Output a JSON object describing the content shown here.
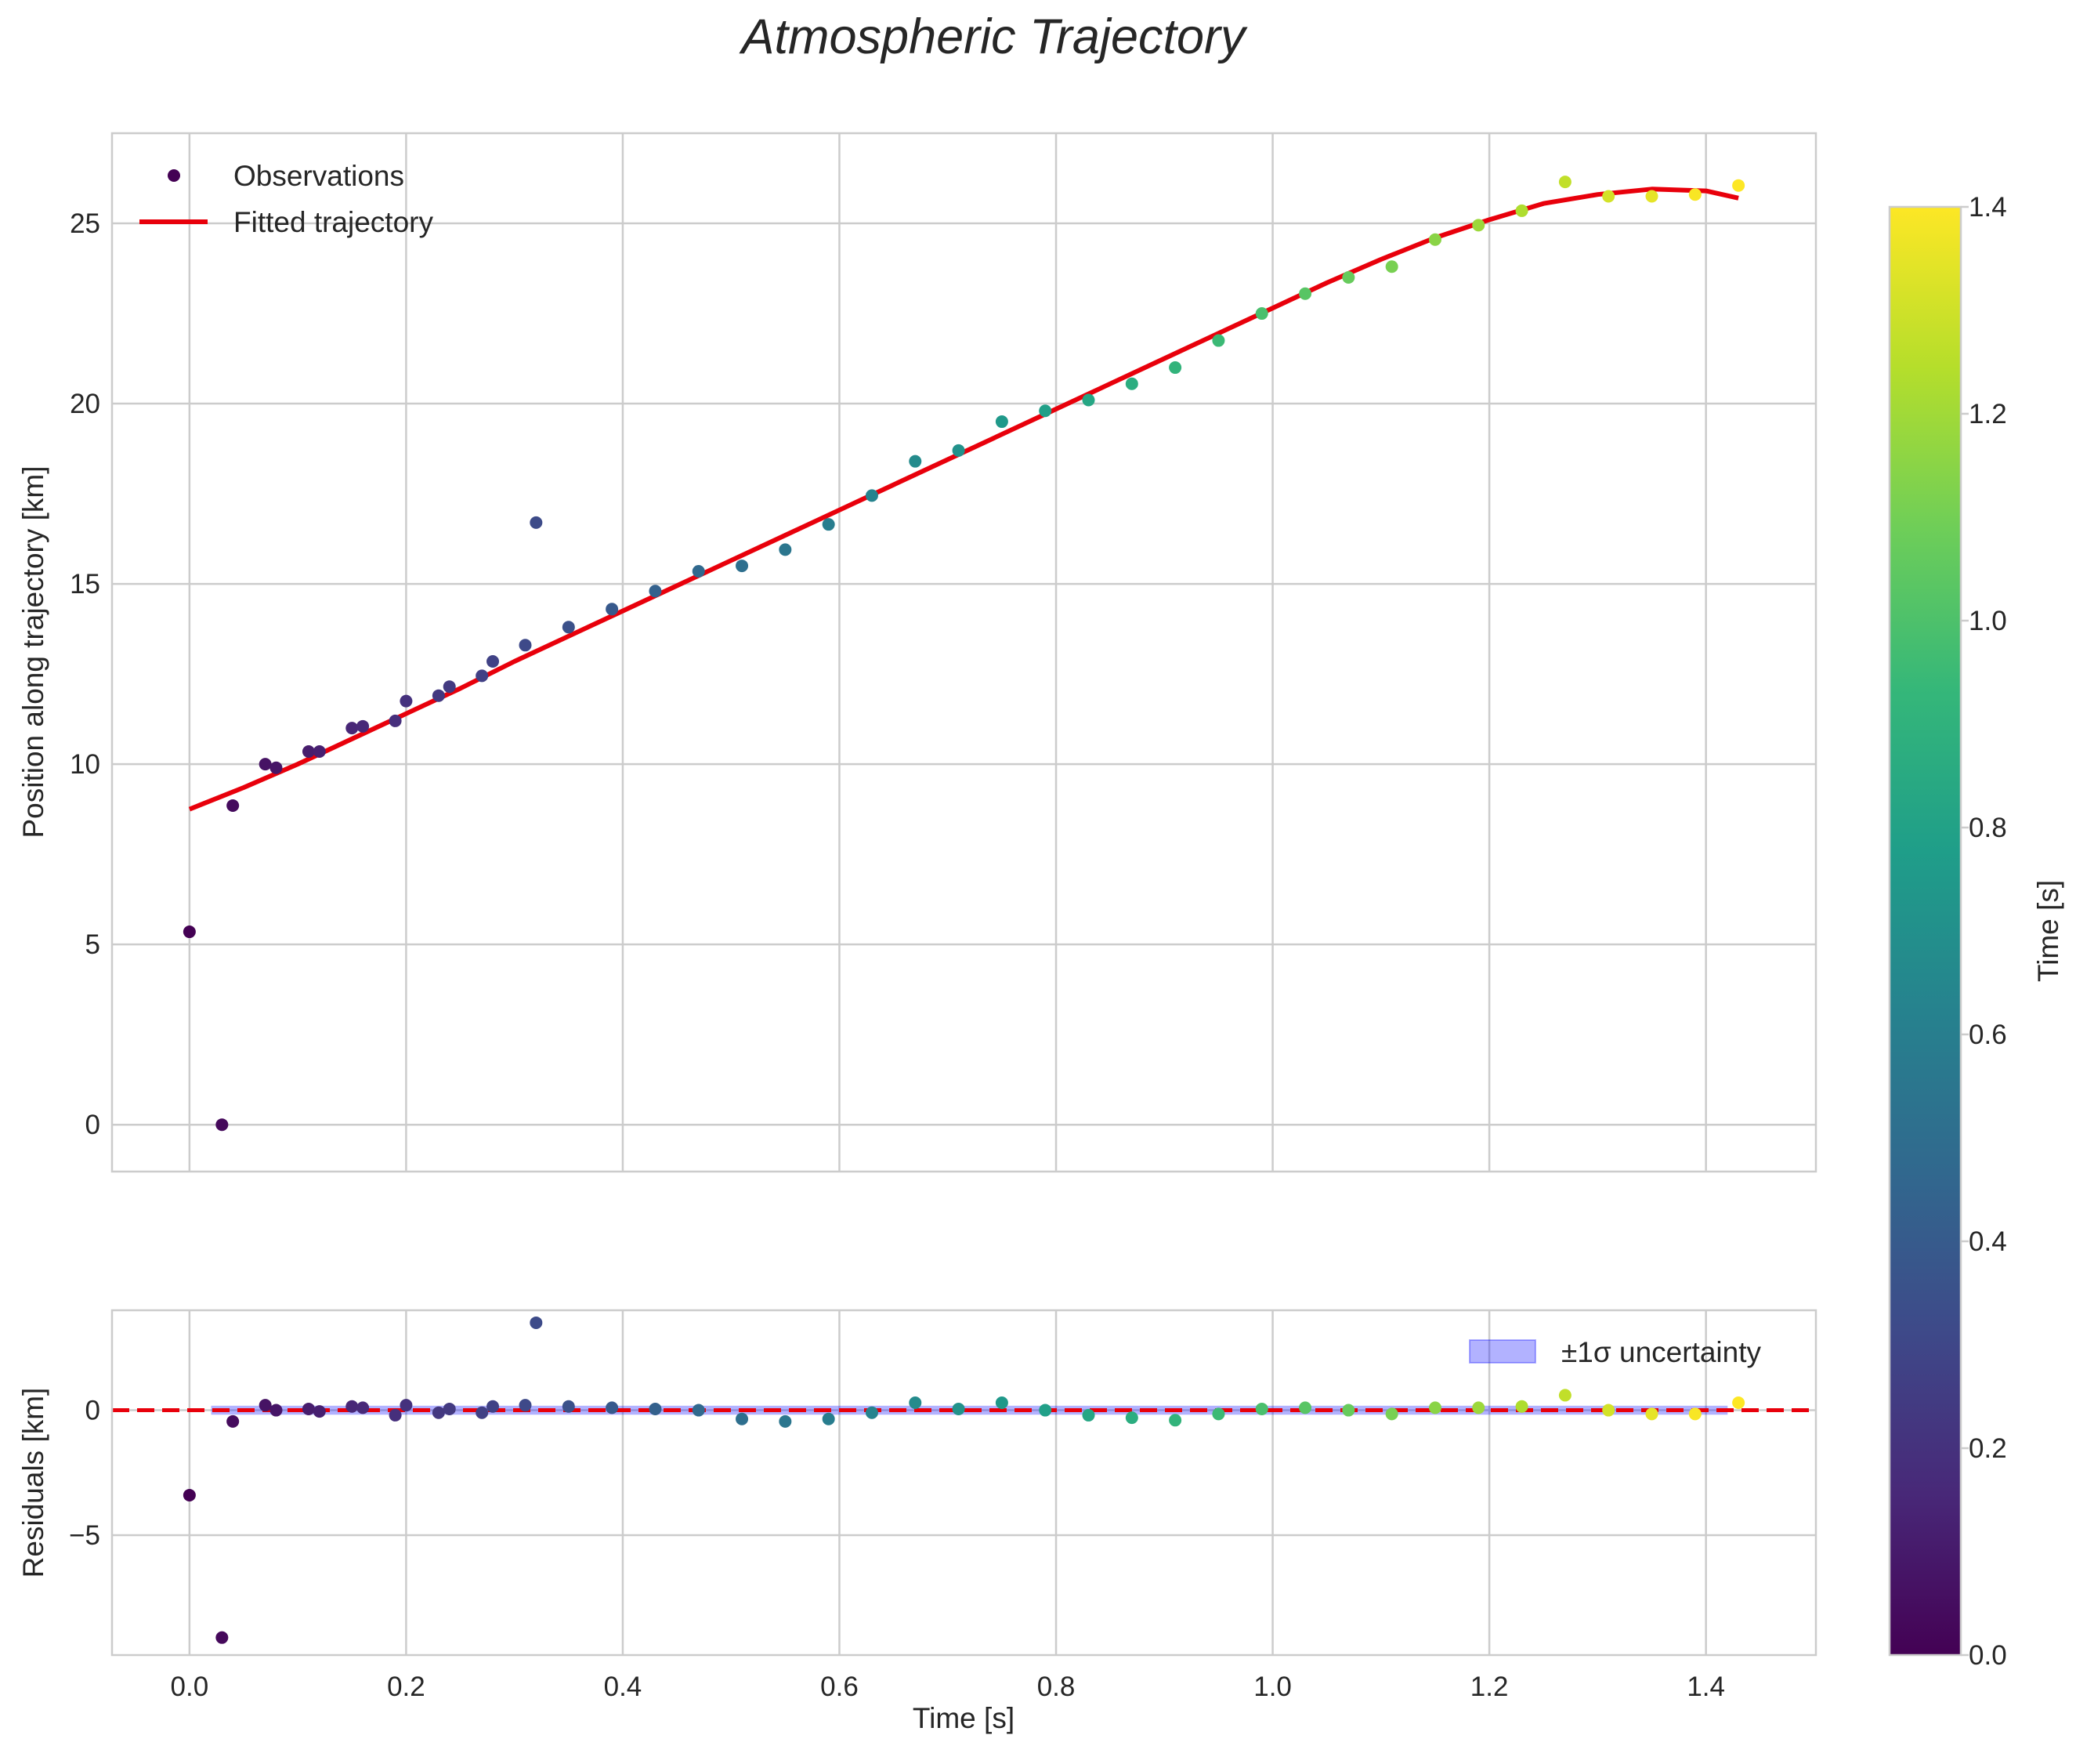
{
  "chart_data": [
    {
      "type": "scatter",
      "title": "Atmospheric Trajectory",
      "xlabel": "",
      "ylabel": "Position along trajectory [km]",
      "xlim": [
        -0.0715,
        1.5015
      ],
      "ylim": [
        -1.3,
        27.5
      ],
      "xticks": [
        0.0,
        0.2,
        0.4,
        0.6,
        0.8,
        1.0,
        1.2,
        1.4
      ],
      "xtick_labels": [],
      "yticks": [
        0,
        5,
        10,
        15,
        20,
        25
      ],
      "ytick_labels": [
        "0",
        "5",
        "10",
        "15",
        "20",
        "25"
      ],
      "grid": true,
      "legend": {
        "placement": "top-left",
        "entries": [
          "Observations",
          "Fitted trajectory"
        ]
      },
      "series": [
        {
          "name": "Observations",
          "kind": "scatter",
          "color_by": "time",
          "x": [
            0.0,
            0.03,
            0.04,
            0.07,
            0.08,
            0.11,
            0.12,
            0.15,
            0.16,
            0.19,
            0.2,
            0.23,
            0.24,
            0.27,
            0.28,
            0.31,
            0.32,
            0.35,
            0.39,
            0.43,
            0.47,
            0.51,
            0.55,
            0.59,
            0.63,
            0.67,
            0.71,
            0.75,
            0.79,
            0.83,
            0.87,
            0.91,
            0.95,
            0.99,
            1.03,
            1.07,
            1.11,
            1.15,
            1.19,
            1.23,
            1.27,
            1.31,
            1.35,
            1.39,
            1.43
          ],
          "y": [
            5.35,
            0.0,
            8.85,
            10.0,
            9.9,
            10.35,
            10.35,
            11.0,
            11.05,
            11.2,
            11.75,
            11.9,
            12.15,
            12.45,
            12.85,
            13.3,
            16.7,
            13.8,
            14.3,
            14.8,
            15.35,
            15.5,
            15.95,
            16.65,
            17.45,
            18.4,
            18.7,
            19.5,
            19.8,
            20.1,
            20.55,
            21.0,
            21.75,
            22.5,
            23.05,
            23.5,
            23.8,
            24.55,
            24.95,
            25.35,
            26.15,
            25.75,
            25.75,
            25.8,
            26.05
          ]
        },
        {
          "name": "Fitted trajectory",
          "kind": "line",
          "color": "#e8000b",
          "x": [
            0.0,
            0.05,
            0.1,
            0.15,
            0.2,
            0.25,
            0.3,
            0.35,
            0.4,
            0.45,
            0.5,
            0.55,
            0.6,
            0.65,
            0.7,
            0.75,
            0.8,
            0.85,
            0.9,
            0.95,
            1.0,
            1.05,
            1.1,
            1.15,
            1.2,
            1.25,
            1.3,
            1.35,
            1.4,
            1.43
          ],
          "y": [
            8.75,
            9.35,
            10.0,
            10.7,
            11.4,
            12.1,
            12.85,
            13.55,
            14.25,
            14.95,
            15.65,
            16.35,
            17.05,
            17.75,
            18.45,
            19.15,
            19.85,
            20.55,
            21.25,
            21.95,
            22.65,
            23.35,
            24.0,
            24.6,
            25.1,
            25.55,
            25.8,
            25.95,
            25.9,
            25.7
          ]
        }
      ]
    },
    {
      "type": "scatter",
      "title": "",
      "xlabel": "Time [s]",
      "ylabel": "Residuals [km]",
      "xlim": [
        -0.0715,
        1.5015
      ],
      "ylim": [
        -9.8,
        4.0
      ],
      "xticks": [
        0.0,
        0.2,
        0.4,
        0.6,
        0.8,
        1.0,
        1.2,
        1.4
      ],
      "xtick_labels": [
        "0.0",
        "0.2",
        "0.4",
        "0.6",
        "0.8",
        "1.0",
        "1.2",
        "1.4"
      ],
      "yticks": [
        -5,
        0
      ],
      "ytick_labels": [
        "−5",
        "0"
      ],
      "grid": true,
      "legend": {
        "placement": "top-right",
        "entries": [
          "±1σ uncertainty"
        ]
      },
      "zero_line": {
        "y": 0,
        "style": "dashed",
        "color": "#e8000b"
      },
      "uncertainty_band": {
        "name": "±1σ uncertainty",
        "lower": -0.18,
        "upper": 0.18,
        "x": [
          0.02,
          1.42
        ],
        "color": "#0000ff"
      },
      "series": [
        {
          "name": "Residuals",
          "kind": "scatter",
          "color_by": "time",
          "x": [
            0.0,
            0.03,
            0.04,
            0.07,
            0.08,
            0.11,
            0.12,
            0.15,
            0.16,
            0.19,
            0.2,
            0.23,
            0.24,
            0.27,
            0.28,
            0.31,
            0.32,
            0.35,
            0.39,
            0.43,
            0.47,
            0.51,
            0.55,
            0.59,
            0.63,
            0.67,
            0.71,
            0.75,
            0.79,
            0.83,
            0.87,
            0.91,
            0.95,
            0.99,
            1.03,
            1.07,
            1.11,
            1.15,
            1.19,
            1.23,
            1.27,
            1.31,
            1.35,
            1.39,
            1.43
          ],
          "y": [
            -3.4,
            -9.1,
            -0.45,
            0.2,
            0.0,
            0.05,
            -0.05,
            0.15,
            0.1,
            -0.2,
            0.2,
            -0.1,
            0.05,
            -0.1,
            0.15,
            0.2,
            3.5,
            0.15,
            0.1,
            0.05,
            0.0,
            -0.35,
            -0.45,
            -0.35,
            -0.1,
            0.3,
            0.05,
            0.3,
            0.0,
            -0.2,
            -0.3,
            -0.4,
            -0.15,
            0.05,
            0.1,
            0.0,
            -0.15,
            0.1,
            0.1,
            0.15,
            0.6,
            0.0,
            -0.15,
            -0.15,
            0.3
          ]
        }
      ]
    },
    {
      "type": "heatmap",
      "title": "",
      "label": "Time [s]",
      "range": [
        0.0,
        1.4
      ],
      "ticks": [
        0.0,
        0.2,
        0.4,
        0.6,
        0.8,
        1.0,
        1.2,
        1.4
      ],
      "tick_labels": [
        "0.0",
        "0.2",
        "0.4",
        "0.6",
        "0.8",
        "1.0",
        "1.2",
        "1.4"
      ],
      "colormap": "viridis",
      "colormap_stops": [
        "#440154",
        "#482878",
        "#3e4989",
        "#31688e",
        "#26828e",
        "#1f9e89",
        "#35b779",
        "#6ece58",
        "#b5de2b",
        "#fde725"
      ]
    }
  ]
}
